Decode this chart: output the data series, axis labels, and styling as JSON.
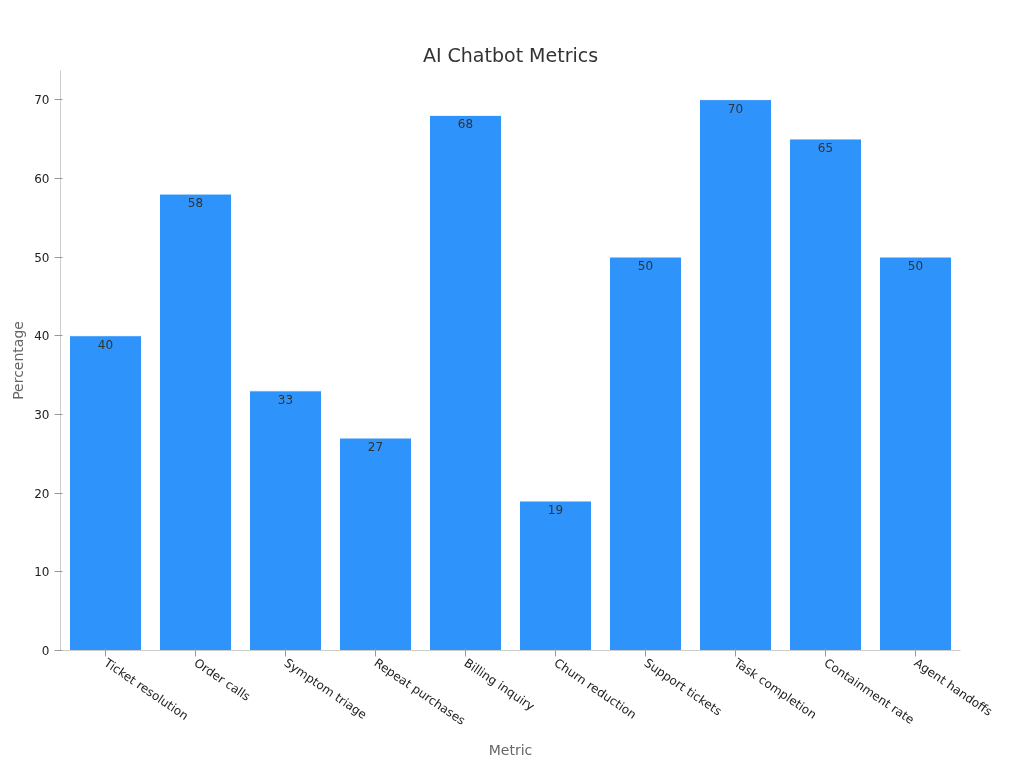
{
  "chart_data": {
    "type": "bar",
    "title": "AI Chatbot Metrics",
    "xlabel": "Metric",
    "ylabel": "Percentage",
    "categories": [
      "Ticket resolution",
      "Order calls",
      "Symptom triage",
      "Repeat purchases",
      "Billing inquiry",
      "Churn reduction",
      "Support tickets",
      "Task completion",
      "Containment rate",
      "Agent handoffs"
    ],
    "values": [
      40,
      58,
      33,
      27,
      68,
      19,
      50,
      70,
      65,
      50
    ],
    "color": "#2e93fa",
    "ylim": [
      0,
      73.7
    ],
    "yticks": [
      0,
      10,
      20,
      30,
      40,
      50,
      60,
      70
    ],
    "grid": false,
    "data_labels": true
  }
}
